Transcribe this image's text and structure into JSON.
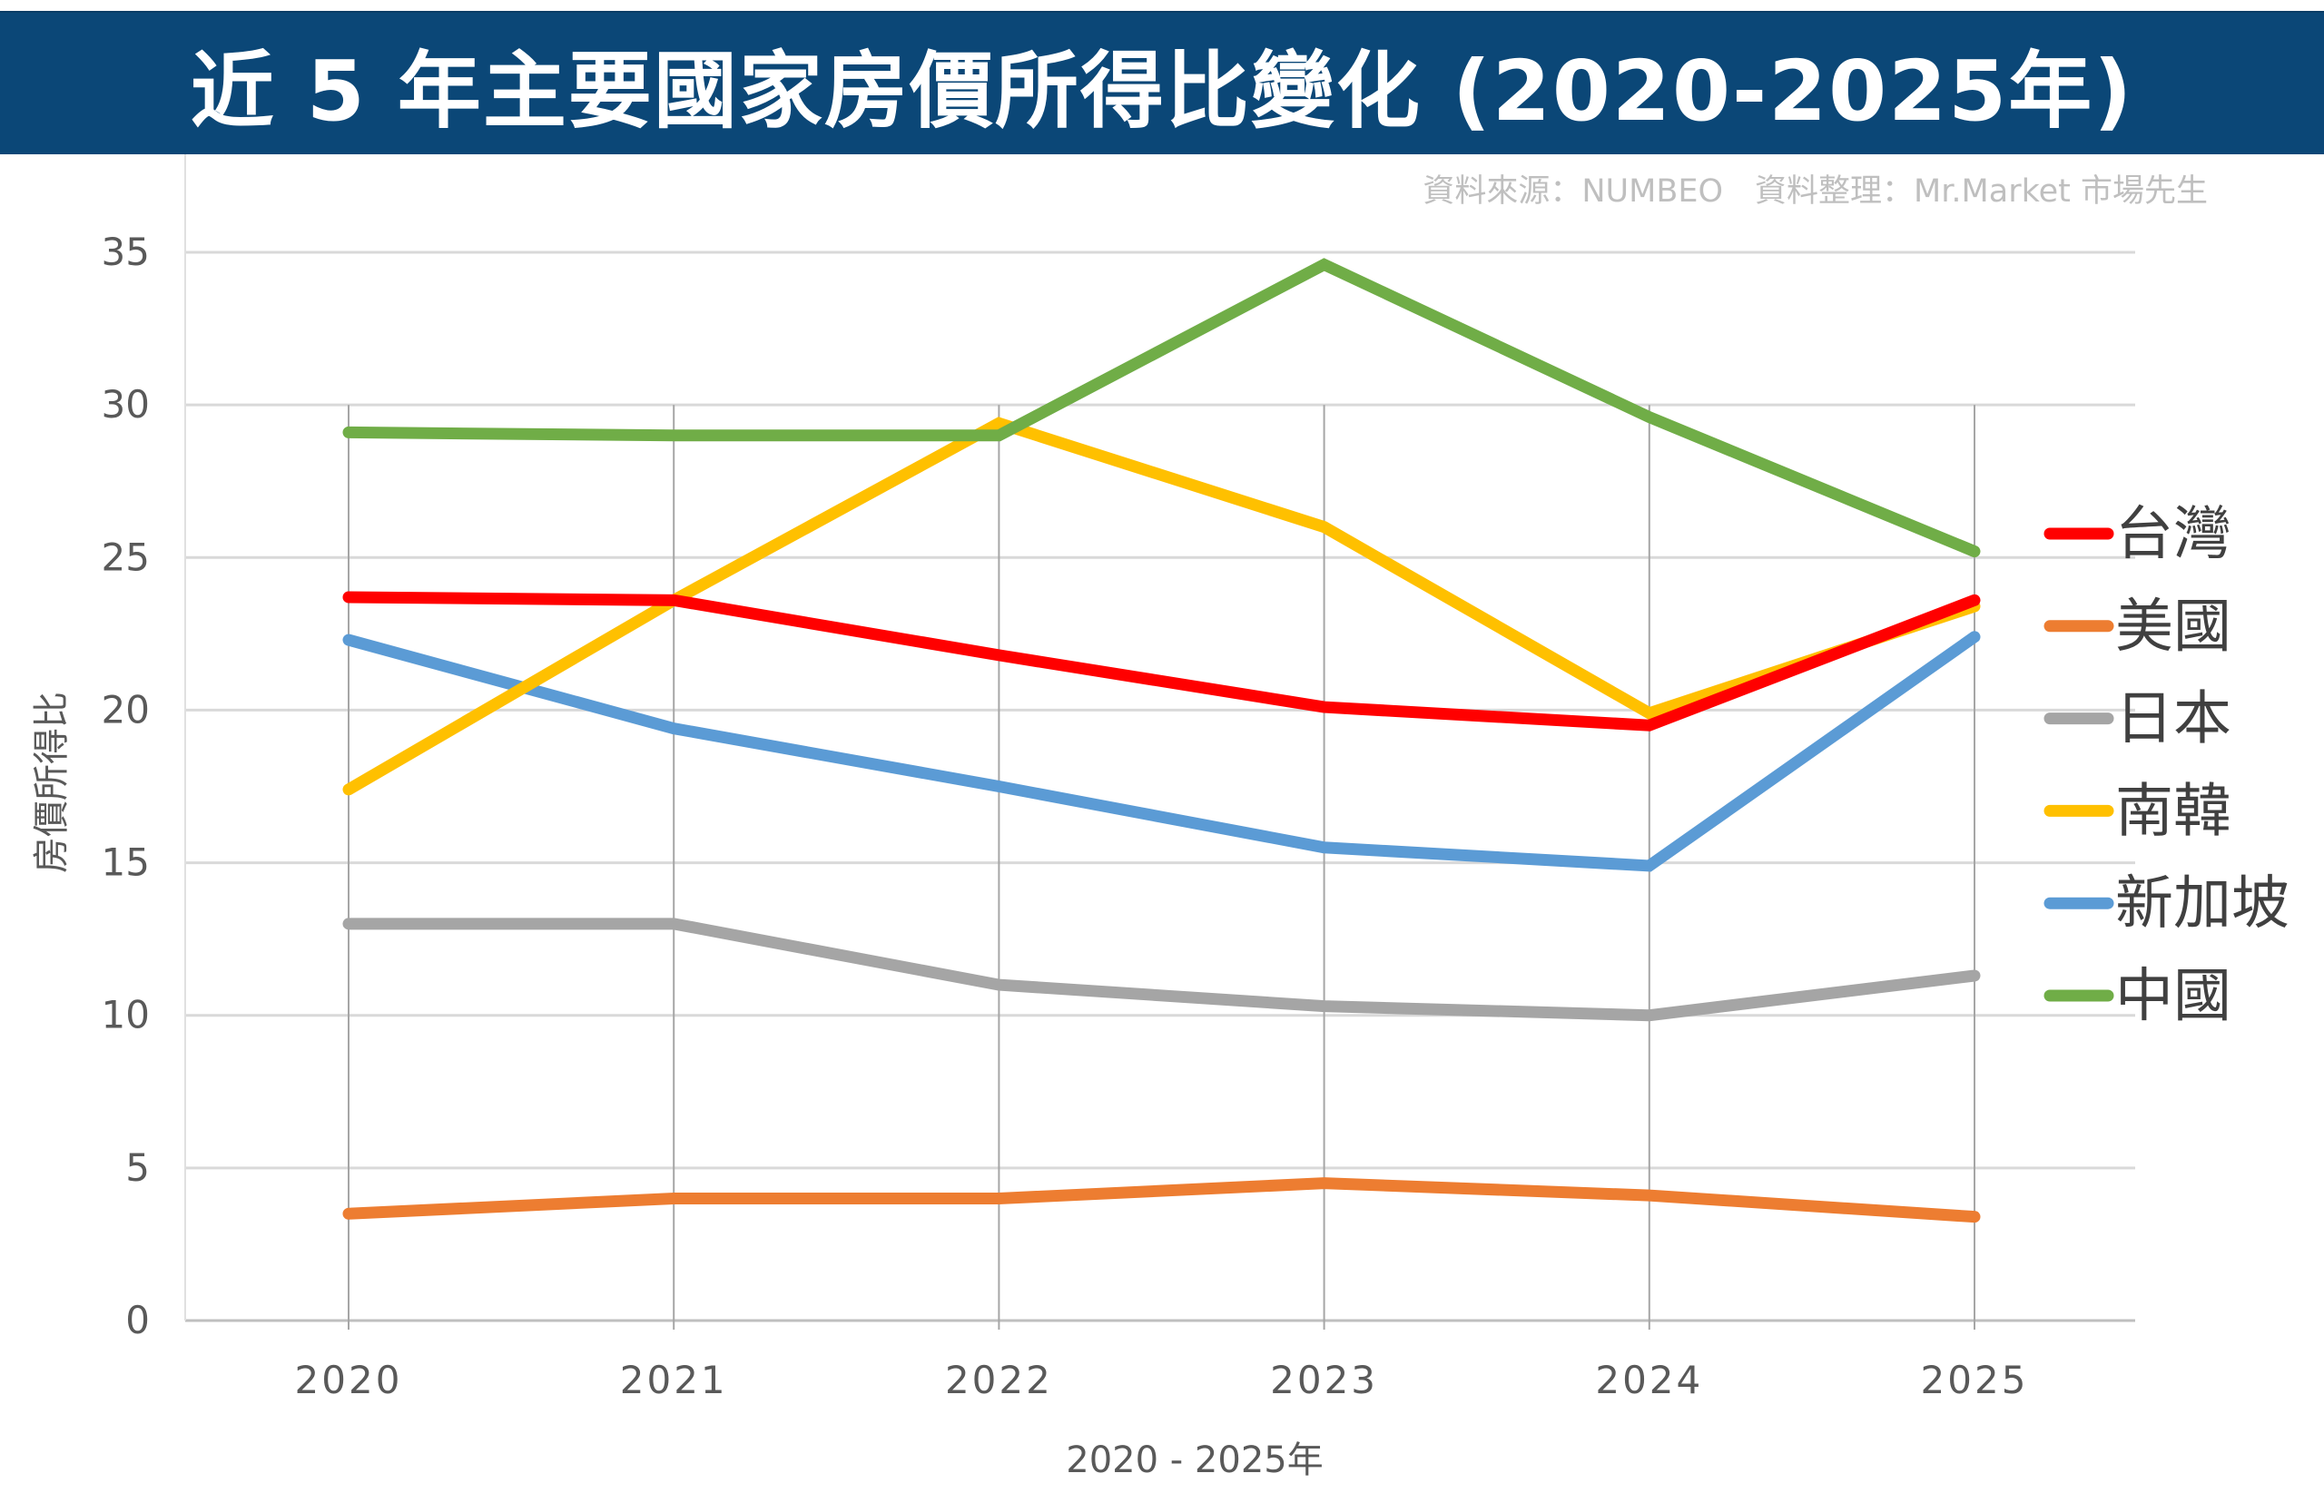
{
  "chart_data": {
    "type": "line",
    "title": "近 5 年主要國家房價所得比變化 (2020-2025年)",
    "source": "資料來源：NUMBEO　資料整理：Mr.Market 市場先生",
    "xlabel": "2020 - 2025年",
    "ylabel": "房價所得比",
    "categories": [
      "2020",
      "2021",
      "2022",
      "2023",
      "2024",
      "2025"
    ],
    "ylim": [
      0,
      35
    ],
    "yticks": [
      0,
      5,
      10,
      15,
      20,
      25,
      30,
      35
    ],
    "grid": true,
    "legend": "right",
    "series": [
      {
        "name": "台灣",
        "color": "#ff0000",
        "values": [
          23.7,
          23.6,
          21.8,
          20.1,
          19.5,
          23.6
        ]
      },
      {
        "name": "美國",
        "color": "#ed7d31",
        "values": [
          3.5,
          4.0,
          4.0,
          4.5,
          4.1,
          3.4
        ]
      },
      {
        "name": "日本",
        "color": "#a5a5a5",
        "values": [
          13.0,
          13.0,
          11.0,
          10.3,
          10.0,
          11.3
        ]
      },
      {
        "name": "南韓",
        "color": "#ffc000",
        "values": [
          17.4,
          23.6,
          29.4,
          26.0,
          19.9,
          23.4
        ]
      },
      {
        "name": "新加坡",
        "color": "#5b9bd5",
        "values": [
          22.3,
          19.4,
          17.5,
          15.5,
          14.9,
          22.4
        ]
      },
      {
        "name": "中國",
        "color": "#70ad47",
        "values": [
          29.1,
          29.0,
          29.0,
          34.6,
          29.6,
          25.2
        ]
      }
    ]
  }
}
